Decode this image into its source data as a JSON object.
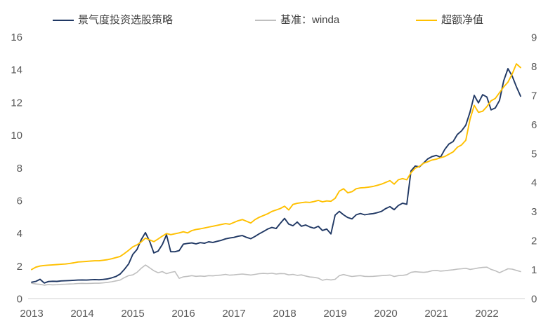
{
  "chart_data": {
    "type": "line",
    "title": "",
    "x_interval": "monthly",
    "x_start": "2013-01",
    "x_end": "2022-09",
    "x_tick_labels": [
      "2013",
      "2014",
      "2015",
      "2016",
      "2017",
      "2018",
      "2019",
      "2020",
      "2021",
      "2022"
    ],
    "left_axis": {
      "min": 0,
      "max": 16,
      "step": 2,
      "ticks": [
        0,
        2,
        4,
        6,
        8,
        10,
        12,
        14,
        16
      ]
    },
    "right_axis": {
      "min": 0,
      "max": 9,
      "step": 1,
      "ticks": [
        0,
        1,
        2,
        3,
        4,
        5,
        6,
        7,
        8,
        9
      ]
    },
    "grid": "none",
    "legend_position": "top",
    "colors": {
      "strategy": "#203864",
      "benchmark": "#bfbfbf",
      "excess": "#ffc000",
      "axis_text": "#595959",
      "axis_line": "#d9d9d9"
    },
    "series": [
      {
        "name": "景气度投资选股策略",
        "axis": "left",
        "color_key": "strategy",
        "width": 1.9,
        "values": [
          1.0,
          1.05,
          1.18,
          0.95,
          1.04,
          1.06,
          1.05,
          1.08,
          1.09,
          1.1,
          1.12,
          1.13,
          1.14,
          1.13,
          1.15,
          1.16,
          1.15,
          1.17,
          1.2,
          1.27,
          1.35,
          1.5,
          1.78,
          2.11,
          2.7,
          3.0,
          3.6,
          4.03,
          3.5,
          2.79,
          2.9,
          3.3,
          3.9,
          2.86,
          2.86,
          2.93,
          3.33,
          3.37,
          3.4,
          3.34,
          3.42,
          3.38,
          3.47,
          3.43,
          3.5,
          3.56,
          3.65,
          3.7,
          3.74,
          3.81,
          3.85,
          3.74,
          3.66,
          3.8,
          3.96,
          4.1,
          4.25,
          4.35,
          4.28,
          4.6,
          4.9,
          4.55,
          4.45,
          4.68,
          4.42,
          4.5,
          4.38,
          4.3,
          4.42,
          4.16,
          4.25,
          3.95,
          5.1,
          5.33,
          5.12,
          4.95,
          4.87,
          5.12,
          5.2,
          5.12,
          5.16,
          5.19,
          5.25,
          5.33,
          5.5,
          5.62,
          5.43,
          5.69,
          5.83,
          5.76,
          7.8,
          8.1,
          8.05,
          8.29,
          8.54,
          8.68,
          8.75,
          8.64,
          9.11,
          9.45,
          9.6,
          10.03,
          10.25,
          10.6,
          11.4,
          12.42,
          11.96,
          12.46,
          12.32,
          11.53,
          11.65,
          12.11,
          13.32,
          14.05,
          13.6,
          12.95,
          12.37
        ]
      },
      {
        "name": "基准：winda",
        "axis": "left",
        "color_key": "benchmark",
        "width": 1.6,
        "values": [
          0.94,
          0.89,
          0.87,
          0.82,
          0.86,
          0.84,
          0.85,
          0.87,
          0.88,
          0.89,
          0.9,
          0.92,
          0.93,
          0.92,
          0.93,
          0.94,
          0.94,
          0.96,
          0.99,
          1.03,
          1.08,
          1.13,
          1.28,
          1.4,
          1.45,
          1.6,
          1.85,
          2.05,
          1.88,
          1.7,
          1.58,
          1.65,
          1.52,
          1.6,
          1.65,
          1.24,
          1.33,
          1.36,
          1.4,
          1.36,
          1.38,
          1.36,
          1.4,
          1.39,
          1.42,
          1.44,
          1.48,
          1.43,
          1.45,
          1.48,
          1.5,
          1.47,
          1.44,
          1.48,
          1.52,
          1.54,
          1.52,
          1.55,
          1.5,
          1.53,
          1.52,
          1.45,
          1.48,
          1.42,
          1.45,
          1.38,
          1.32,
          1.3,
          1.25,
          1.12,
          1.18,
          1.14,
          1.18,
          1.4,
          1.47,
          1.4,
          1.35,
          1.38,
          1.4,
          1.36,
          1.35,
          1.36,
          1.38,
          1.4,
          1.42,
          1.44,
          1.35,
          1.4,
          1.42,
          1.46,
          1.6,
          1.64,
          1.62,
          1.6,
          1.63,
          1.7,
          1.72,
          1.68,
          1.7,
          1.73,
          1.76,
          1.8,
          1.82,
          1.85,
          1.78,
          1.82,
          1.87,
          1.9,
          1.92,
          1.78,
          1.7,
          1.58,
          1.7,
          1.82,
          1.8,
          1.72,
          1.65
        ]
      },
      {
        "name": "超额净值",
        "axis": "right",
        "color_key": "excess",
        "width": 1.9,
        "values": [
          1.0,
          1.08,
          1.12,
          1.14,
          1.15,
          1.16,
          1.17,
          1.18,
          1.19,
          1.21,
          1.23,
          1.26,
          1.27,
          1.28,
          1.29,
          1.3,
          1.3,
          1.32,
          1.34,
          1.37,
          1.41,
          1.45,
          1.55,
          1.66,
          1.78,
          1.85,
          1.95,
          2.08,
          2.02,
          1.96,
          2.05,
          2.15,
          2.24,
          2.2,
          2.23,
          2.26,
          2.3,
          2.26,
          2.34,
          2.38,
          2.4,
          2.43,
          2.46,
          2.49,
          2.52,
          2.55,
          2.58,
          2.56,
          2.62,
          2.68,
          2.72,
          2.66,
          2.6,
          2.72,
          2.8,
          2.86,
          2.92,
          3.0,
          3.05,
          3.1,
          3.18,
          3.05,
          3.24,
          3.28,
          3.3,
          3.32,
          3.31,
          3.34,
          3.38,
          3.33,
          3.36,
          3.35,
          3.45,
          3.7,
          3.78,
          3.64,
          3.68,
          3.78,
          3.81,
          3.82,
          3.84,
          3.86,
          3.9,
          3.94,
          4.0,
          4.06,
          3.94,
          4.09,
          4.13,
          4.09,
          4.33,
          4.49,
          4.55,
          4.66,
          4.71,
          4.77,
          4.8,
          4.85,
          4.89,
          4.97,
          5.05,
          5.21,
          5.29,
          5.45,
          6.17,
          6.65,
          6.41,
          6.45,
          6.61,
          6.81,
          6.89,
          7.09,
          7.29,
          7.45,
          7.73,
          8.08,
          7.95
        ]
      }
    ]
  }
}
